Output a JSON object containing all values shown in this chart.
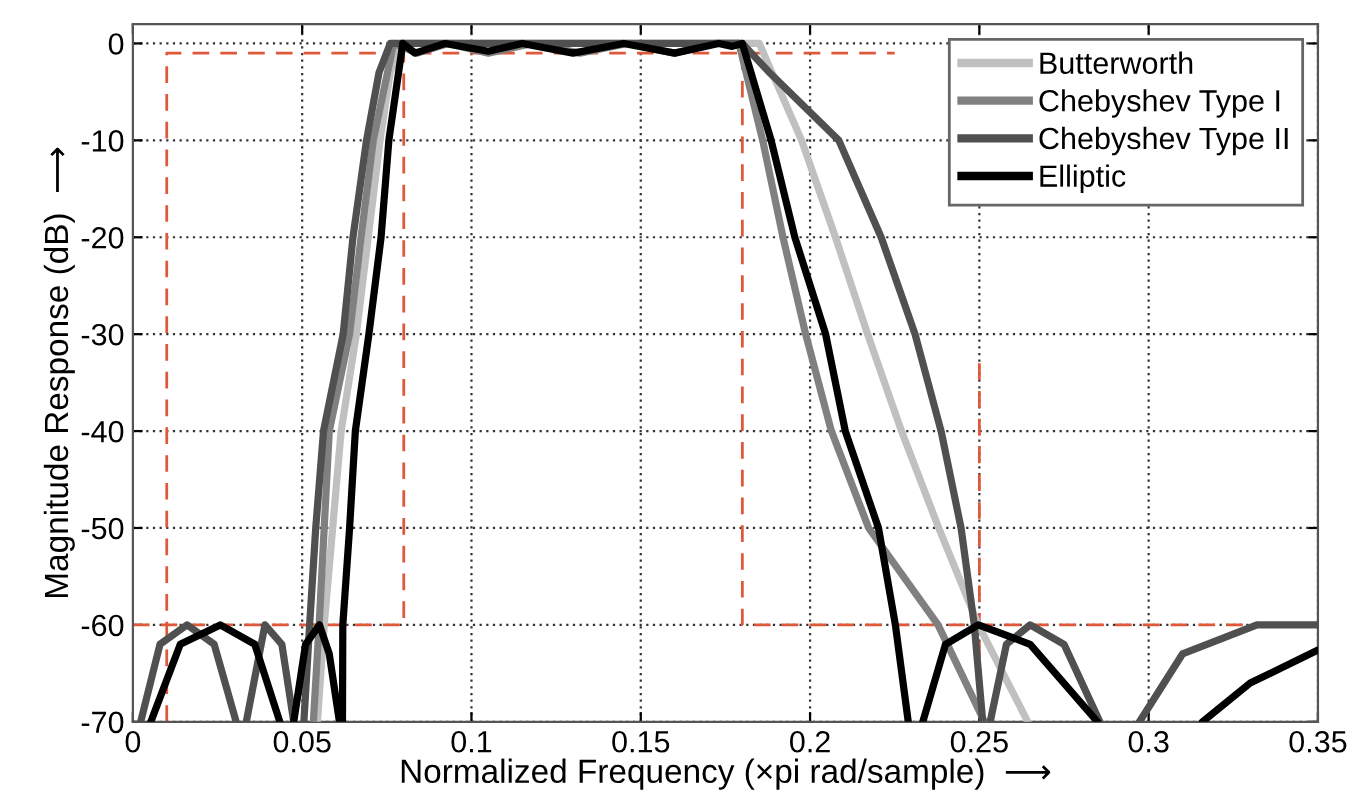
{
  "chart_data": {
    "type": "line",
    "xlabel": "Normalized Frequency (×pi rad/sample)  ⟶",
    "ylabel": "Magnitude Response (dB)  ⟶",
    "xlim": [
      0,
      0.35
    ],
    "ylim": [
      -70,
      2
    ],
    "xticks": [
      0,
      0.05,
      0.1,
      0.15,
      0.2,
      0.25,
      0.3,
      0.35
    ],
    "yticks": [
      0,
      -10,
      -20,
      -30,
      -40,
      -50,
      -60,
      -70
    ],
    "grid": true,
    "legend": "top right",
    "line_style": "solid",
    "marker": "none",
    "series": [
      {
        "color": "#e0583a",
        "line_style": "dashed",
        "x": [
          0.01,
          0.01,
          0.225,
          0.24,
          0.25,
          0.25
        ],
        "values": [
          -70,
          -1,
          -1,
          null,
          -33,
          -70
        ]
      },
      {
        "color": "#e0583a",
        "line_style": "dashed",
        "x": [
          0,
          0.08,
          0.08
        ],
        "values": [
          -60,
          -60,
          -1
        ]
      },
      {
        "color": "#e0583a",
        "line_style": "dashed",
        "x": [
          0.18,
          0.18,
          0.35
        ],
        "values": [
          -1,
          -60,
          -60
        ]
      },
      {
        "name": "Butterworth",
        "color": "#c0c0c0",
        "x": [
          0.0545,
          0.0565,
          0.059,
          0.0615,
          0.066,
          0.0695,
          0.073,
          0.076,
          0.079,
          0.1,
          0.13,
          0.16,
          0.185,
          0.1975,
          0.2075,
          0.217,
          0.227,
          0.238,
          0.2497,
          0.2643
        ],
        "values": [
          -70,
          -60,
          -50,
          -40,
          -30,
          -20,
          -10,
          -3,
          0,
          0,
          0,
          0,
          0,
          -10,
          -20,
          -30,
          -40,
          -50,
          -60,
          -70
        ]
      },
      {
        "name": "Chebyshev Type I",
        "color": "#808080",
        "x": [
          0.0533,
          0.055,
          0.0565,
          0.058,
          0.064,
          0.0674,
          0.071,
          0.077,
          0.084,
          0.093,
          0.105,
          0.118,
          0.132,
          0.146,
          0.16,
          0.172,
          0.179,
          0.186,
          0.192,
          0.1987,
          0.2063,
          0.2173,
          0.2378,
          0.2515
        ],
        "values": [
          -70,
          -60,
          -50,
          -40,
          -30,
          -20,
          -10,
          0,
          -1,
          0,
          -1,
          0,
          -1,
          0,
          -1,
          0,
          0,
          -10,
          -20,
          -30,
          -40,
          -50,
          -60,
          -70
        ]
      },
      {
        "name": "Chebyshev Type II",
        "color": "#505050",
        "x": [
          0.0023,
          0.008,
          0.016,
          0.024,
          0.0305,
          0.031,
          0.0335,
          0.039,
          0.044,
          0.0475,
          0.049,
          0.0505,
          0.0522,
          0.054,
          0.0563,
          0.0621,
          0.065,
          0.069,
          0.0727,
          0.076,
          0.1,
          0.13,
          0.16,
          0.18,
          0.188,
          0.2085,
          0.221,
          0.231,
          0.2387,
          0.2446,
          0.2485,
          0.251,
          0.252,
          0.2532,
          0.258,
          0.265,
          0.275,
          0.2856,
          0.29,
          0.2973,
          0.31,
          0.332,
          0.35
        ],
        "values": [
          -70,
          -62,
          -60,
          -62,
          -70,
          null,
          -70,
          -60,
          -62,
          -70,
          null,
          -70,
          -60,
          -50,
          -40,
          -30,
          -20,
          -10,
          -3,
          0,
          0,
          0,
          0,
          0,
          -3,
          -10,
          -20,
          -30,
          -40,
          -50,
          -60,
          -70,
          null,
          -70,
          -62,
          -60,
          -62,
          -70,
          null,
          -70,
          -63,
          -60,
          -60
        ]
      },
      {
        "name": "Elliptic",
        "color": "#000000",
        "x": [
          0.0053,
          0.014,
          0.0258,
          0.036,
          0.0434,
          0.045,
          0.0475,
          0.051,
          0.0551,
          0.058,
          0.061,
          0.0615,
          0.0619,
          0.062,
          0.064,
          0.0657,
          0.0697,
          0.0733,
          0.0756,
          0.0797,
          0.0833,
          0.0922,
          0.105,
          0.115,
          0.13,
          0.145,
          0.16,
          0.173,
          0.177,
          0.18,
          0.1885,
          0.1955,
          0.2046,
          0.2104,
          0.2202,
          0.2252,
          0.229,
          0.231,
          0.2333,
          0.24,
          0.2497,
          0.265,
          0.2849,
          0.3,
          0.3159,
          0.33,
          0.35
        ],
        "values": [
          -70,
          -62,
          -60,
          -62,
          -70,
          null,
          -70,
          -62,
          -60,
          -63,
          -70,
          null,
          -70,
          -60,
          -50,
          -40,
          -30,
          -20,
          -10,
          0,
          -1,
          0,
          -0.8,
          0,
          -1,
          0,
          -1,
          0,
          -0.3,
          0,
          -10,
          -20,
          -30,
          -40,
          -50,
          -60,
          -70,
          null,
          -70,
          -62,
          -60,
          -62,
          -70,
          null,
          -70,
          -66,
          -62.6
        ]
      }
    ]
  }
}
